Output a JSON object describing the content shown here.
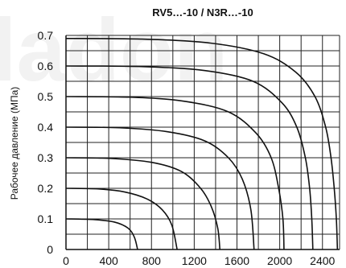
{
  "chart_data": {
    "type": "line",
    "title": "RV5…-10 / N3R…-10",
    "xlabel": "",
    "ylabel": "Рабочее давление (МПа)",
    "xlim": [
      0,
      2560
    ],
    "ylim": [
      0,
      0.7
    ],
    "x_ticks": [
      "0",
      "400",
      "800",
      "1200",
      "1600",
      "2000",
      "2400"
    ],
    "y_ticks": [
      "0",
      "0.1",
      "0.2",
      "0.3",
      "0.4",
      "0.5",
      "0.6",
      "0.7"
    ],
    "grid": true,
    "colors": {
      "curve": "#111111",
      "grid": "#222222",
      "axis": "#111111"
    },
    "series": [
      {
        "values": [
          [
            0,
            0.1
          ],
          [
            250,
            0.098
          ],
          [
            450,
            0.09
          ],
          [
            580,
            0.07
          ],
          [
            640,
            0.04
          ],
          [
            670,
            0.0
          ]
        ]
      },
      {
        "values": [
          [
            0,
            0.2
          ],
          [
            300,
            0.198
          ],
          [
            550,
            0.188
          ],
          [
            760,
            0.165
          ],
          [
            900,
            0.13
          ],
          [
            990,
            0.08
          ],
          [
            1040,
            0.0
          ]
        ]
      },
      {
        "values": [
          [
            0,
            0.3
          ],
          [
            400,
            0.298
          ],
          [
            800,
            0.285
          ],
          [
            1080,
            0.255
          ],
          [
            1260,
            0.2
          ],
          [
            1360,
            0.14
          ],
          [
            1420,
            0.07
          ],
          [
            1440,
            0.0
          ]
        ]
      },
      {
        "values": [
          [
            0,
            0.4
          ],
          [
            500,
            0.398
          ],
          [
            950,
            0.385
          ],
          [
            1300,
            0.355
          ],
          [
            1520,
            0.3
          ],
          [
            1650,
            0.23
          ],
          [
            1730,
            0.13
          ],
          [
            1760,
            0.0
          ]
        ]
      },
      {
        "values": [
          [
            0,
            0.5
          ],
          [
            600,
            0.498
          ],
          [
            1100,
            0.485
          ],
          [
            1520,
            0.45
          ],
          [
            1780,
            0.38
          ],
          [
            1920,
            0.3
          ],
          [
            1990,
            0.2
          ],
          [
            2030,
            0.1
          ],
          [
            2040,
            0.0
          ]
        ]
      },
      {
        "values": [
          [
            0,
            0.6
          ],
          [
            700,
            0.598
          ],
          [
            1300,
            0.585
          ],
          [
            1750,
            0.55
          ],
          [
            2020,
            0.48
          ],
          [
            2160,
            0.4
          ],
          [
            2240,
            0.3
          ],
          [
            2280,
            0.2
          ],
          [
            2300,
            0.1
          ],
          [
            2310,
            0.0
          ]
        ]
      },
      {
        "values": [
          [
            0,
            0.69
          ],
          [
            700,
            0.688
          ],
          [
            1350,
            0.675
          ],
          [
            1850,
            0.64
          ],
          [
            2150,
            0.58
          ],
          [
            2330,
            0.5
          ],
          [
            2430,
            0.4
          ],
          [
            2480,
            0.3
          ],
          [
            2510,
            0.2
          ],
          [
            2530,
            0.1
          ],
          [
            2540,
            0.0
          ]
        ]
      }
    ]
  }
}
